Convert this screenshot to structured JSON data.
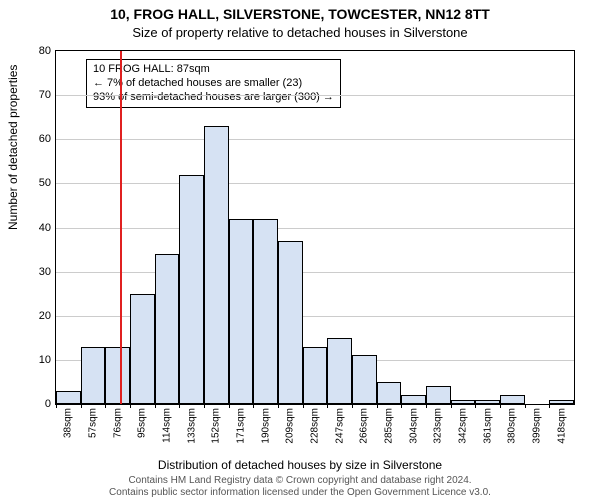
{
  "title": "10, FROG HALL, SILVERSTONE, TOWCESTER, NN12 8TT",
  "subtitle": "Size of property relative to detached houses in Silverstone",
  "ylabel": "Number of detached properties",
  "xlabel": "Distribution of detached houses by size in Silverstone",
  "footer_line1": "Contains HM Land Registry data © Crown copyright and database right 2024.",
  "footer_line2": "Contains public sector information licensed under the Open Government Licence v3.0.",
  "chart": {
    "type": "histogram",
    "ylim": [
      0,
      80
    ],
    "ytick_step": 10,
    "background_color": "#ffffff",
    "grid_color": "#cccccc",
    "bar_fill": "#d6e2f3",
    "bar_border": "#000000",
    "bin_width_sqm": 19,
    "categories": [
      "38sqm",
      "57sqm",
      "76sqm",
      "95sqm",
      "114sqm",
      "133sqm",
      "152sqm",
      "171sqm",
      "190sqm",
      "209sqm",
      "228sqm",
      "247sqm",
      "266sqm",
      "285sqm",
      "304sqm",
      "323sqm",
      "342sqm",
      "361sqm",
      "380sqm",
      "399sqm",
      "418sqm"
    ],
    "values": [
      3,
      13,
      13,
      25,
      34,
      52,
      63,
      42,
      42,
      37,
      13,
      15,
      11,
      5,
      2,
      4,
      1,
      1,
      2,
      0,
      1
    ],
    "marker": {
      "value_sqm": 87,
      "color": "#e02020",
      "box_lines": [
        "10 FROG HALL: 87sqm",
        "← 7% of detached houses are smaller (23)",
        "93% of semi-detached houses are larger (300) →"
      ]
    }
  }
}
